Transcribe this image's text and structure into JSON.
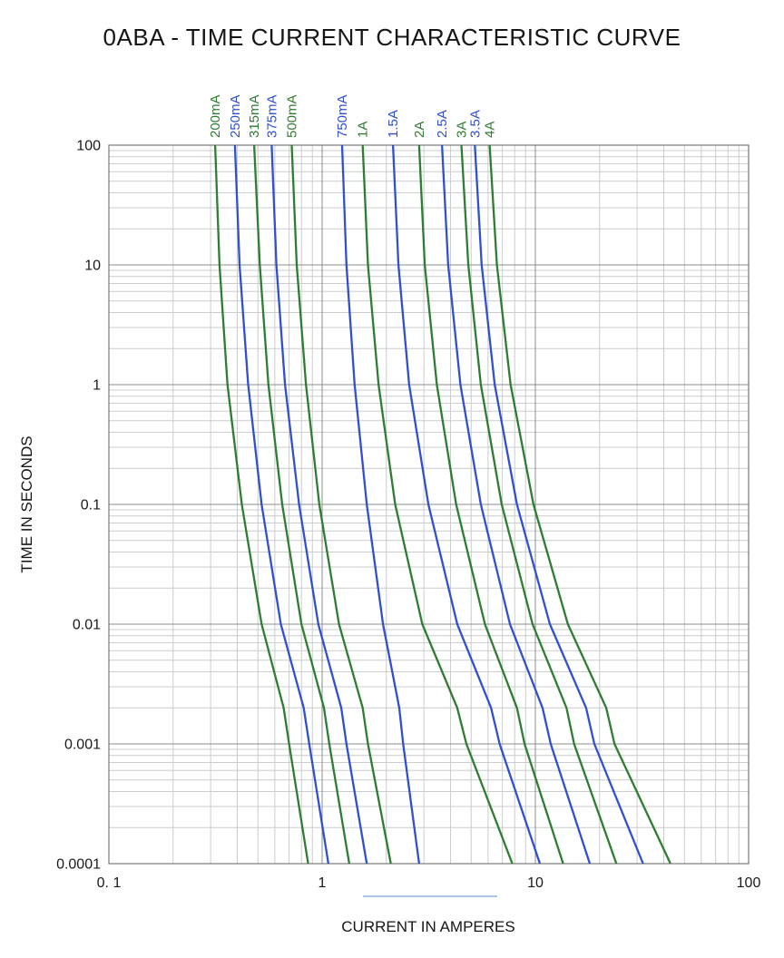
{
  "colors": {
    "green": "#2e7d32",
    "blue": "#3050d0",
    "grid_minor": "#cccccc",
    "grid_major": "#8c8c8c",
    "axis": "#777777",
    "text": "#1a1a1a",
    "artifact": "#aac4ec"
  },
  "chart_data": {
    "type": "line",
    "title": "0ABA - TIME CURRENT CHARACTERISTIC CURVE",
    "xlabel": "CURRENT IN AMPERES",
    "ylabel": "TIME IN SECONDS",
    "x_scale": "log",
    "y_scale": "log",
    "xlim": [
      0.1,
      100
    ],
    "ylim": [
      0.0001,
      100
    ],
    "grid": true,
    "legend_position": "labels-above-plot-rotated",
    "x_ticks": [
      {
        "value": 0.1,
        "label": "0. 1"
      },
      {
        "value": 1,
        "label": "1"
      },
      {
        "value": 10,
        "label": "10"
      },
      {
        "value": 100,
        "label": "100"
      }
    ],
    "y_ticks": [
      {
        "value": 100,
        "label": "100"
      },
      {
        "value": 10,
        "label": "10"
      },
      {
        "value": 1,
        "label": "1"
      },
      {
        "value": 0.1,
        "label": "0.1"
      },
      {
        "value": 0.01,
        "label": "0.01"
      },
      {
        "value": 0.001,
        "label": "0.001"
      },
      {
        "value": 0.0001,
        "label": "0.0001"
      }
    ],
    "series": [
      {
        "name": "200mA",
        "color": "green",
        "points": [
          [
            0.315,
            100
          ],
          [
            0.33,
            10
          ],
          [
            0.36,
            1
          ],
          [
            0.42,
            0.1
          ],
          [
            0.52,
            0.01
          ],
          [
            0.66,
            0.002
          ],
          [
            0.7,
            0.001
          ],
          [
            0.86,
            0.0001
          ]
        ]
      },
      {
        "name": "250mA",
        "color": "blue",
        "points": [
          [
            0.39,
            100
          ],
          [
            0.41,
            10
          ],
          [
            0.45,
            1
          ],
          [
            0.52,
            0.1
          ],
          [
            0.64,
            0.01
          ],
          [
            0.82,
            0.002
          ],
          [
            0.87,
            0.001
          ],
          [
            1.07,
            0.0001
          ]
        ]
      },
      {
        "name": "315mA",
        "color": "green",
        "points": [
          [
            0.48,
            100
          ],
          [
            0.51,
            10
          ],
          [
            0.56,
            1
          ],
          [
            0.65,
            0.1
          ],
          [
            0.8,
            0.01
          ],
          [
            1.02,
            0.002
          ],
          [
            1.08,
            0.001
          ],
          [
            1.34,
            0.0001
          ]
        ]
      },
      {
        "name": "375mA",
        "color": "blue",
        "points": [
          [
            0.58,
            100
          ],
          [
            0.61,
            10
          ],
          [
            0.67,
            1
          ],
          [
            0.78,
            0.1
          ],
          [
            0.96,
            0.01
          ],
          [
            1.23,
            0.002
          ],
          [
            1.3,
            0.001
          ],
          [
            1.62,
            0.0001
          ]
        ]
      },
      {
        "name": "500mA",
        "color": "green",
        "points": [
          [
            0.72,
            100
          ],
          [
            0.76,
            10
          ],
          [
            0.84,
            1
          ],
          [
            0.97,
            0.1
          ],
          [
            1.2,
            0.01
          ],
          [
            1.55,
            0.002
          ],
          [
            1.64,
            0.001
          ],
          [
            2.1,
            0.0001
          ]
        ]
      },
      {
        "name": "750mA",
        "color": "blue",
        "points": [
          [
            1.24,
            100
          ],
          [
            1.3,
            10
          ],
          [
            1.42,
            1
          ],
          [
            1.62,
            0.1
          ],
          [
            1.93,
            0.01
          ],
          [
            2.3,
            0.002
          ],
          [
            2.4,
            0.001
          ],
          [
            2.85,
            0.0001
          ]
        ]
      },
      {
        "name": "1A",
        "color": "green",
        "points": [
          [
            1.55,
            100
          ],
          [
            1.64,
            10
          ],
          [
            1.84,
            1
          ],
          [
            2.2,
            0.1
          ],
          [
            2.95,
            0.01
          ],
          [
            4.3,
            0.002
          ],
          [
            4.75,
            0.001
          ],
          [
            7.8,
            0.0001
          ]
        ]
      },
      {
        "name": "1.5A",
        "color": "blue",
        "points": [
          [
            2.15,
            100
          ],
          [
            2.28,
            10
          ],
          [
            2.56,
            1
          ],
          [
            3.15,
            0.1
          ],
          [
            4.3,
            0.01
          ],
          [
            6.2,
            0.002
          ],
          [
            6.8,
            0.001
          ],
          [
            10.5,
            0.0001
          ]
        ]
      },
      {
        "name": "2A",
        "color": "green",
        "points": [
          [
            2.85,
            100
          ],
          [
            3.03,
            10
          ],
          [
            3.45,
            1
          ],
          [
            4.25,
            0.1
          ],
          [
            5.8,
            0.01
          ],
          [
            8.2,
            0.002
          ],
          [
            8.9,
            0.001
          ],
          [
            13.5,
            0.0001
          ]
        ]
      },
      {
        "name": "2.5A",
        "color": "blue",
        "points": [
          [
            3.65,
            100
          ],
          [
            3.9,
            10
          ],
          [
            4.45,
            1
          ],
          [
            5.55,
            0.1
          ],
          [
            7.6,
            0.01
          ],
          [
            10.8,
            0.002
          ],
          [
            11.8,
            0.001
          ],
          [
            18.0,
            0.0001
          ]
        ]
      },
      {
        "name": "3A",
        "color": "green",
        "points": [
          [
            4.5,
            100
          ],
          [
            4.85,
            10
          ],
          [
            5.55,
            1
          ],
          [
            6.95,
            0.1
          ],
          [
            9.7,
            0.01
          ],
          [
            14.0,
            0.002
          ],
          [
            15.2,
            0.001
          ],
          [
            24.0,
            0.0001
          ]
        ]
      },
      {
        "name": "3.5A",
        "color": "blue",
        "points": [
          [
            5.2,
            100
          ],
          [
            5.6,
            10
          ],
          [
            6.45,
            1
          ],
          [
            8.2,
            0.1
          ],
          [
            11.7,
            0.01
          ],
          [
            17.3,
            0.002
          ],
          [
            18.9,
            0.001
          ],
          [
            32.0,
            0.0001
          ]
        ]
      },
      {
        "name": "4A",
        "color": "green",
        "points": [
          [
            6.1,
            100
          ],
          [
            6.6,
            10
          ],
          [
            7.65,
            1
          ],
          [
            9.8,
            0.1
          ],
          [
            14.2,
            0.01
          ],
          [
            21.5,
            0.002
          ],
          [
            23.5,
            0.001
          ],
          [
            43.0,
            0.0001
          ]
        ]
      }
    ]
  }
}
